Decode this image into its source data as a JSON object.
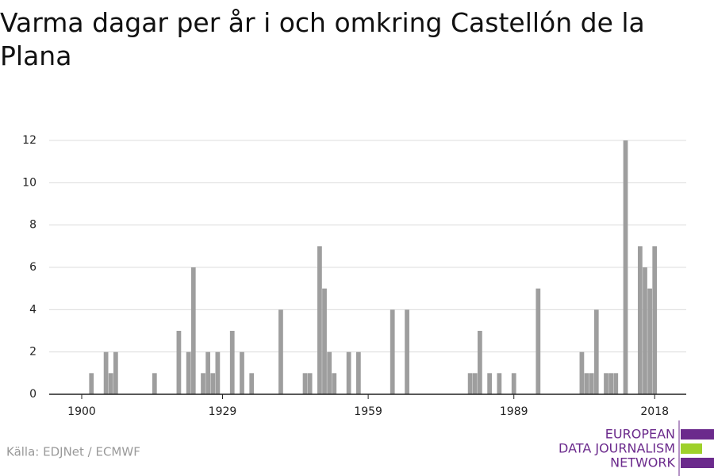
{
  "chart_data": {
    "type": "bar",
    "title": "Varma dagar per år i och omkring Castellón de la Plana",
    "source": "Källa: EDJNet / ECMWF",
    "logo": [
      "EUROPEAN",
      "DATA JOURNALISM",
      "NETWORK"
    ],
    "x": [
      1902,
      1905,
      1906,
      1907,
      1915,
      1920,
      1922,
      1923,
      1925,
      1926,
      1927,
      1928,
      1931,
      1933,
      1935,
      1941,
      1946,
      1947,
      1949,
      1950,
      1951,
      1952,
      1955,
      1957,
      1964,
      1967,
      1980,
      1981,
      1982,
      1984,
      1986,
      1989,
      1994,
      2003,
      2004,
      2005,
      2006,
      2008,
      2009,
      2010,
      2012,
      2015,
      2016,
      2017,
      2018
    ],
    "values": [
      1,
      2,
      1,
      2,
      1,
      3,
      2,
      6,
      1,
      2,
      1,
      2,
      3,
      2,
      1,
      4,
      1,
      1,
      7,
      5,
      2,
      1,
      2,
      2,
      4,
      4,
      1,
      1,
      3,
      1,
      1,
      1,
      5,
      2,
      1,
      1,
      4,
      1,
      1,
      1,
      12,
      7,
      6,
      5,
      7
    ],
    "color": "#9e9e9e",
    "xlim": [
      1893.3,
      2024.5
    ],
    "xticks": [
      1900,
      1929,
      1959,
      1989,
      2018
    ],
    "ylim": [
      0,
      12
    ],
    "yticks": [
      0,
      2,
      4,
      6,
      8,
      10,
      12
    ],
    "grid": true
  }
}
